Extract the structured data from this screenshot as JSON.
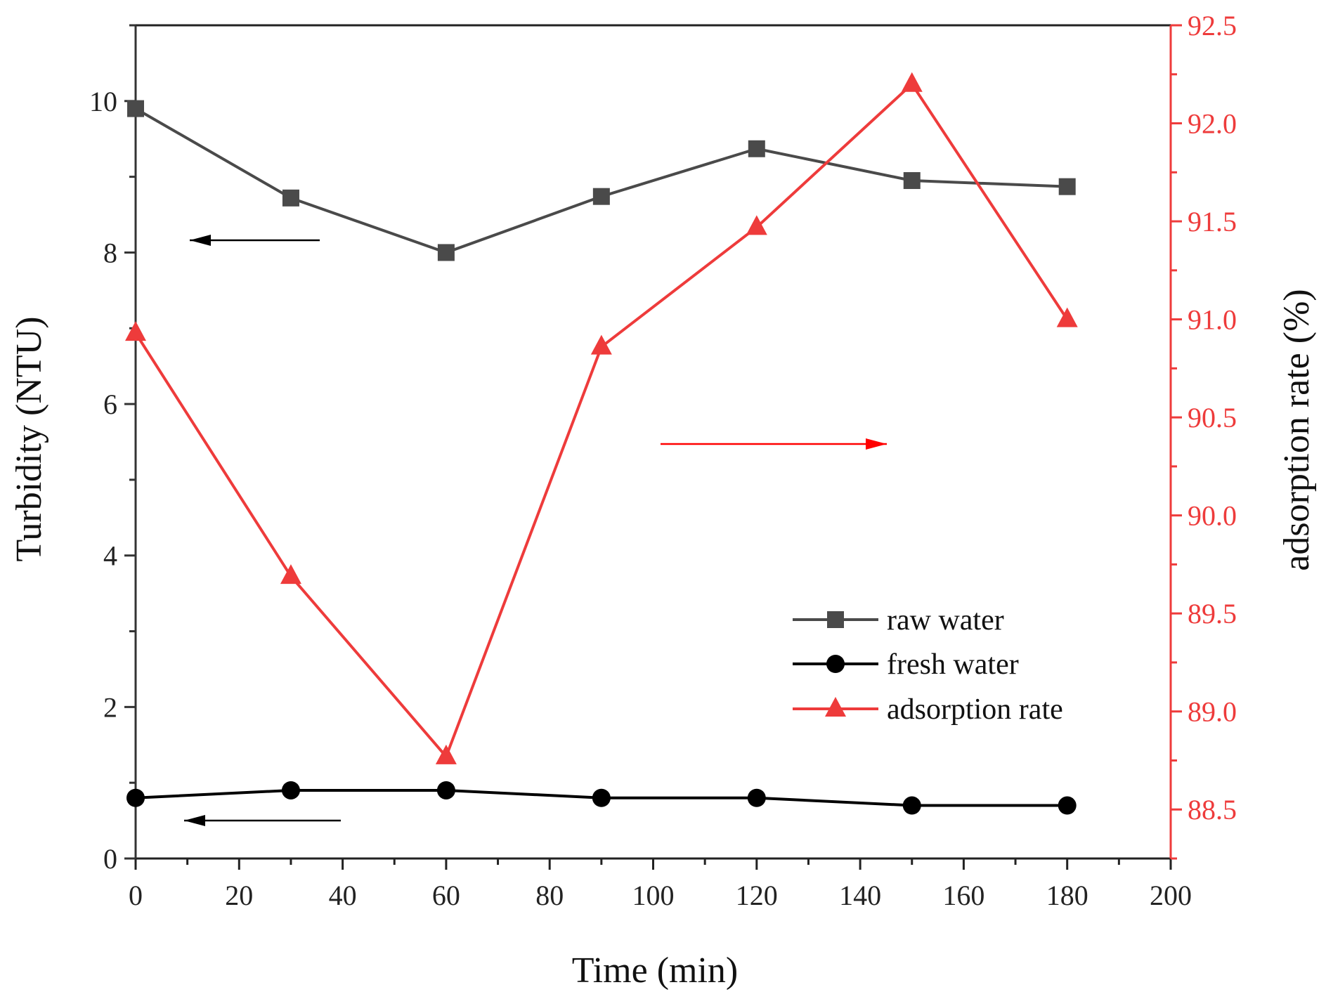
{
  "chart_data": {
    "type": "line",
    "xlabel": "Time (min)",
    "ylabel_left": "Turbidity (NTU)",
    "ylabel_right": "adsorption rate (%)",
    "xlim": [
      0,
      200
    ],
    "ylim_left": [
      0,
      11
    ],
    "ylim_right": [
      88.25,
      92.5
    ],
    "x_ticks": [
      "0",
      "20",
      "40",
      "60",
      "80",
      "100",
      "120",
      "140",
      "160",
      "180",
      "200"
    ],
    "y_left_ticks": [
      "0",
      "2",
      "4",
      "6",
      "8",
      "10"
    ],
    "y_right_ticks": [
      "88.5",
      "89.0",
      "89.5",
      "90.0",
      "90.5",
      "91.0",
      "91.5",
      "92.0",
      "92.5"
    ],
    "x": [
      0,
      30,
      60,
      90,
      120,
      150,
      180
    ],
    "series": [
      {
        "name": "raw water",
        "axis": "left",
        "marker": "square",
        "values": [
          9.9,
          8.72,
          8.0,
          8.74,
          9.37,
          8.95,
          8.87
        ]
      },
      {
        "name": "fresh water",
        "axis": "left",
        "marker": "circle",
        "values": [
          0.8,
          0.9,
          0.9,
          0.8,
          0.8,
          0.7,
          0.7
        ]
      },
      {
        "name": "adsorption rate",
        "axis": "right",
        "marker": "triangle",
        "values": [
          90.93,
          89.69,
          88.77,
          90.86,
          91.47,
          92.2,
          91.0
        ]
      }
    ],
    "legend": {
      "position": "lower-right-inner"
    }
  },
  "colors": {
    "raw_water": "#4a4a4a",
    "fresh_water": "#000000",
    "adsorption_rate": "#ee3b3b",
    "right_axis": "#ee3b3b",
    "left_axis": "#333333",
    "arrow_black": "#000000",
    "arrow_red": "#ff0000"
  }
}
